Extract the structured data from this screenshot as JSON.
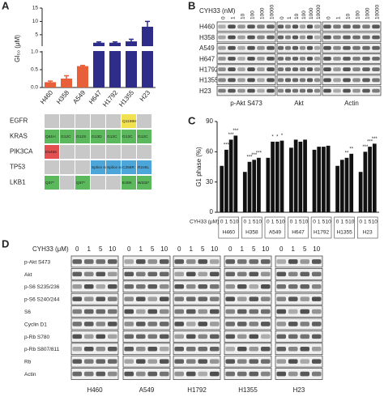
{
  "panel_labels": [
    "A",
    "B",
    "C",
    "D"
  ],
  "chart_data": [
    {
      "type": "bar",
      "ylabel": "GI₅₀ (μM)",
      "categories": [
        "H460",
        "H358",
        "A549",
        "H647",
        "H1792",
        "H1355",
        "H23"
      ],
      "values": [
        0.15,
        0.25,
        0.6,
        2,
        2,
        2.5,
        8
      ],
      "errors": [
        0.03,
        0.08,
        0.02,
        0.3,
        0.3,
        0.8,
        2
      ],
      "colors": [
        "#e8603a",
        "#e8603a",
        "#e8603a",
        "#2e2e8a",
        "#2e2e8a",
        "#2e2e8a",
        "#2e2e8a"
      ],
      "ylim": [
        0,
        15
      ],
      "break_at": 1,
      "yticks": [
        {
          "value": 0,
          "label": "0.0"
        },
        0.5,
        {
          "value": 1,
          "label": "1.0"
        },
        5,
        10,
        15
      ]
    },
    {
      "type": "grouped_bar",
      "ylabel": "G1 phase (%)",
      "xlabel": "CYH33 (μM)",
      "color": "#111",
      "categories": [
        "0",
        "1",
        "5",
        "10"
      ],
      "groups": [
        {
          "name": "H460",
          "values": [
            46,
            62,
            72,
            76
          ],
          "significance": [
            null,
            "***",
            "***",
            "***"
          ]
        },
        {
          "name": "H358",
          "values": [
            40,
            50,
            52,
            54
          ],
          "significance": [
            null,
            "***",
            "***",
            "***"
          ]
        },
        {
          "name": "A549",
          "values": [
            54,
            70,
            70,
            71
          ],
          "significance": [
            null,
            "*",
            "*",
            "*"
          ]
        },
        {
          "name": "H647",
          "values": [
            64,
            72,
            70,
            72
          ],
          "significance": [
            null,
            null,
            null,
            null
          ]
        },
        {
          "name": "H1792",
          "values": [
            62,
            65,
            65,
            66
          ],
          "significance": [
            null,
            null,
            null,
            null
          ]
        },
        {
          "name": "H1355",
          "values": [
            46,
            52,
            54,
            58
          ],
          "significance": [
            null,
            null,
            "**",
            "**"
          ]
        },
        {
          "name": "H23",
          "values": [
            40,
            60,
            65,
            68
          ],
          "significance": [
            null,
            "***",
            "***",
            "***"
          ]
        }
      ],
      "ylim": [
        0,
        90
      ],
      "yticks": [
        0,
        30,
        60,
        90
      ]
    }
  ],
  "mutation_table": {
    "genes": [
      "EGFR",
      "KRAS",
      "PIK3CA",
      "TP53",
      "LKB1"
    ],
    "cells": [
      [
        null,
        null,
        null,
        null,
        null,
        {
          "label": "Q1159H",
          "color": "#f2e250"
        },
        null
      ],
      [
        {
          "label": "Q61H",
          "color": "#5cb85c"
        },
        {
          "label": "G12C",
          "color": "#5cb85c"
        },
        {
          "label": "G12S",
          "color": "#5cb85c"
        },
        {
          "label": "G13D",
          "color": "#5cb85c"
        },
        {
          "label": "G12C",
          "color": "#5cb85c"
        },
        {
          "label": "G13C",
          "color": "#5cb85c"
        },
        {
          "label": "G12C",
          "color": "#5cb85c"
        }
      ],
      [
        {
          "label": "E545K",
          "color": "#e25050"
        },
        null,
        null,
        null,
        null,
        null,
        null
      ],
      [
        null,
        null,
        null,
        {
          "label": "Splice site",
          "color": "#4da6d9"
        },
        {
          "label": "Splice site",
          "color": "#4da6d9"
        },
        {
          "label": "C258R",
          "color": "#4da6d9"
        },
        {
          "label": "R248L",
          "color": "#4da6d9"
        }
      ],
      [
        {
          "label": "Q37*",
          "color": "#5cb85c"
        },
        null,
        {
          "label": "Q37*",
          "color": "#5cb85c"
        },
        null,
        null,
        {
          "label": "E40K",
          "color": "#5cb85c"
        },
        {
          "label": "W332*",
          "color": "#5cb85c"
        }
      ]
    ]
  },
  "blot_b": {
    "treatment_label": "CYH33 (nM)",
    "doses": [
      "0",
      "1",
      "10",
      "100",
      "1000",
      "10000"
    ],
    "cell_lines": [
      "H460",
      "H358",
      "A549",
      "H647",
      "H1792",
      "H1355",
      "H23"
    ],
    "proteins": [
      "p-Akt S473",
      "Akt",
      "Actin"
    ]
  },
  "blot_d": {
    "treatment_label": "CYH33 (μM)",
    "doses": [
      "0",
      "1",
      "5",
      "10"
    ],
    "cell_lines": [
      "H460",
      "A549",
      "H1792",
      "H1355",
      "H23"
    ],
    "proteins": [
      "p-Akt S473",
      "Akt",
      "p-S6 S235/236",
      "p-S6 S240/244",
      "S6",
      "Cyclin D1",
      "p-Rb S780",
      "p-Rb S807/811",
      "Rb",
      "Actin"
    ]
  }
}
